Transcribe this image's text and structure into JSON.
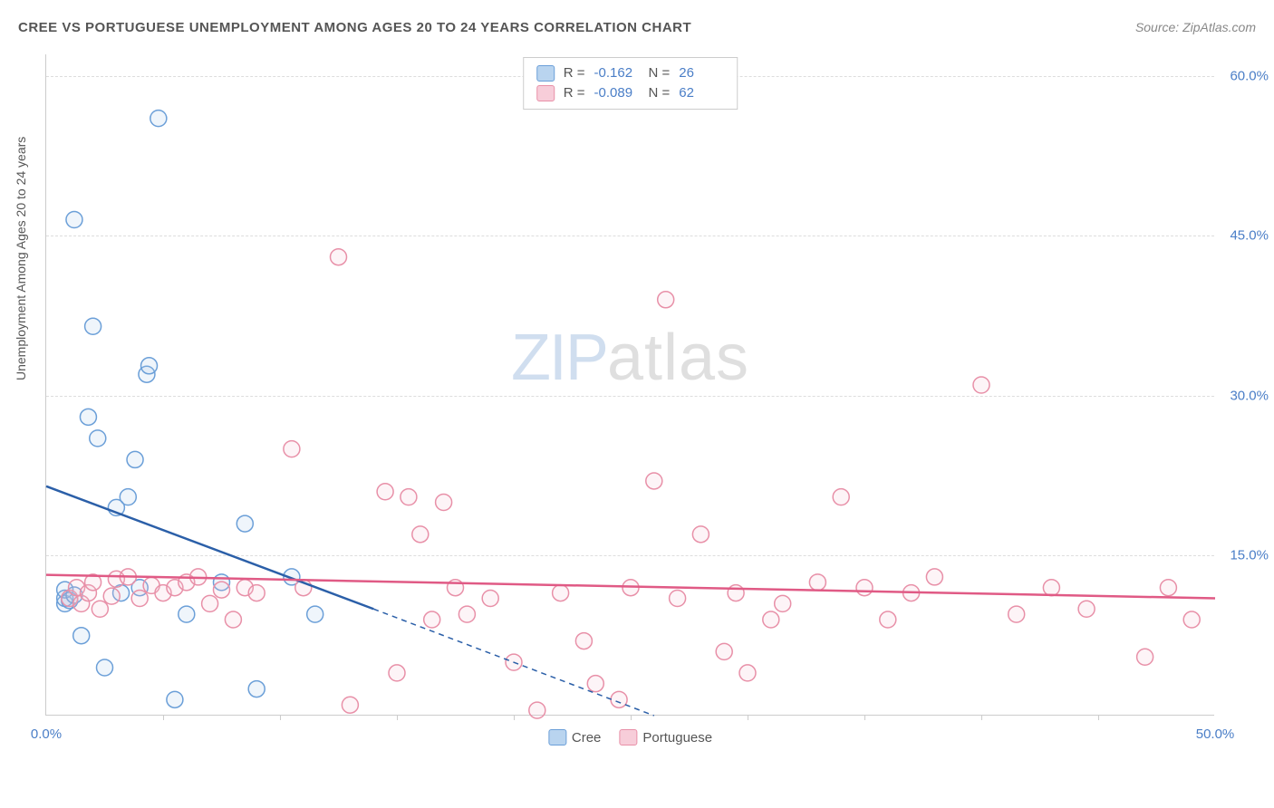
{
  "title": "CREE VS PORTUGUESE UNEMPLOYMENT AMONG AGES 20 TO 24 YEARS CORRELATION CHART",
  "source_prefix": "Source: ",
  "source_name": "ZipAtlas.com",
  "y_axis_label": "Unemployment Among Ages 20 to 24 years",
  "watermark": {
    "zip": "ZIP",
    "atlas": "atlas"
  },
  "chart": {
    "type": "scatter",
    "xlim": [
      0,
      50
    ],
    "ylim": [
      0,
      62
    ],
    "x_ticks_labeled": [
      {
        "pos": 0,
        "label": "0.0%"
      },
      {
        "pos": 50,
        "label": "50.0%"
      }
    ],
    "x_ticks_minor": [
      5,
      10,
      15,
      20,
      25,
      30,
      35,
      40,
      45
    ],
    "y_ticks": [
      {
        "pos": 15,
        "label": "15.0%"
      },
      {
        "pos": 30,
        "label": "30.0%"
      },
      {
        "pos": 45,
        "label": "45.0%"
      },
      {
        "pos": 60,
        "label": "60.0%"
      }
    ],
    "background_color": "#ffffff",
    "grid_color": "#dddddd",
    "marker_radius": 9,
    "marker_stroke_width": 1.5,
    "marker_fill_opacity": 0.18,
    "series": [
      {
        "name": "Cree",
        "color_stroke": "#6b9fd8",
        "color_fill": "#a8c8ea",
        "swatch_fill": "#b9d4ef",
        "swatch_border": "#6b9fd8",
        "R": "-0.162",
        "N": "26",
        "trend": {
          "color": "#2b5fa8",
          "width": 2.5,
          "solid": {
            "x1": 0,
            "y1": 21.5,
            "x2": 14,
            "y2": 10
          },
          "dashed": {
            "x1": 14,
            "y1": 10,
            "x2": 26,
            "y2": 0
          }
        },
        "points": [
          [
            0.8,
            10.5
          ],
          [
            0.8,
            11
          ],
          [
            0.8,
            11.8
          ],
          [
            1.0,
            10.8
          ],
          [
            1.2,
            11.3
          ],
          [
            1.2,
            46.5
          ],
          [
            1.5,
            7.5
          ],
          [
            1.8,
            28
          ],
          [
            2.0,
            36.5
          ],
          [
            2.2,
            26
          ],
          [
            2.5,
            4.5
          ],
          [
            3.0,
            19.5
          ],
          [
            3.2,
            11.5
          ],
          [
            3.5,
            20.5
          ],
          [
            3.8,
            24
          ],
          [
            4.0,
            12
          ],
          [
            4.3,
            32
          ],
          [
            4.4,
            32.8
          ],
          [
            4.8,
            56
          ],
          [
            5.5,
            1.5
          ],
          [
            6.0,
            9.5
          ],
          [
            7.5,
            12.5
          ],
          [
            8.5,
            18
          ],
          [
            9.0,
            2.5
          ],
          [
            10.5,
            13
          ],
          [
            11.5,
            9.5
          ]
        ]
      },
      {
        "name": "Portuguese",
        "color_stroke": "#e890a8",
        "color_fill": "#f5c4d2",
        "swatch_fill": "#f7cdd9",
        "swatch_border": "#e890a8",
        "R": "-0.089",
        "N": "62",
        "trend": {
          "color": "#e05a85",
          "width": 2.5,
          "solid": {
            "x1": 0,
            "y1": 13.2,
            "x2": 50,
            "y2": 11
          },
          "dashed": null
        },
        "points": [
          [
            1.0,
            11
          ],
          [
            1.3,
            12
          ],
          [
            1.5,
            10.5
          ],
          [
            1.8,
            11.5
          ],
          [
            2.0,
            12.5
          ],
          [
            2.3,
            10
          ],
          [
            2.8,
            11.2
          ],
          [
            3.0,
            12.8
          ],
          [
            3.5,
            13
          ],
          [
            4.0,
            11
          ],
          [
            4.5,
            12.2
          ],
          [
            5.0,
            11.5
          ],
          [
            5.5,
            12
          ],
          [
            6.0,
            12.5
          ],
          [
            6.5,
            13
          ],
          [
            7.0,
            10.5
          ],
          [
            7.5,
            11.8
          ],
          [
            8.0,
            9
          ],
          [
            8.5,
            12
          ],
          [
            9.0,
            11.5
          ],
          [
            10.5,
            25
          ],
          [
            11.0,
            12
          ],
          [
            12.5,
            43
          ],
          [
            13.0,
            1
          ],
          [
            14.5,
            21
          ],
          [
            15.0,
            4
          ],
          [
            15.5,
            20.5
          ],
          [
            16.0,
            17
          ],
          [
            16.5,
            9
          ],
          [
            17.0,
            20
          ],
          [
            17.5,
            12
          ],
          [
            18.0,
            9.5
          ],
          [
            19.0,
            11
          ],
          [
            20.0,
            5
          ],
          [
            21.0,
            0.5
          ],
          [
            22.0,
            11.5
          ],
          [
            23.0,
            7
          ],
          [
            23.5,
            3
          ],
          [
            24.5,
            1.5
          ],
          [
            25.0,
            12
          ],
          [
            26.0,
            22
          ],
          [
            26.5,
            39
          ],
          [
            27.0,
            11
          ],
          [
            28.0,
            17
          ],
          [
            29.0,
            6
          ],
          [
            29.5,
            11.5
          ],
          [
            30.0,
            4
          ],
          [
            31.0,
            9
          ],
          [
            31.5,
            10.5
          ],
          [
            33.0,
            12.5
          ],
          [
            34.0,
            20.5
          ],
          [
            35.0,
            12
          ],
          [
            36.0,
            9
          ],
          [
            37.0,
            11.5
          ],
          [
            38.0,
            13
          ],
          [
            40.0,
            31
          ],
          [
            41.5,
            9.5
          ],
          [
            43.0,
            12
          ],
          [
            44.5,
            10
          ],
          [
            47.0,
            5.5
          ],
          [
            48.0,
            12
          ],
          [
            49.0,
            9
          ]
        ]
      }
    ]
  },
  "legend_bottom": [
    {
      "label": "Cree",
      "swatch_fill": "#b9d4ef",
      "swatch_border": "#6b9fd8"
    },
    {
      "label": "Portuguese",
      "swatch_fill": "#f7cdd9",
      "swatch_border": "#e890a8"
    }
  ]
}
